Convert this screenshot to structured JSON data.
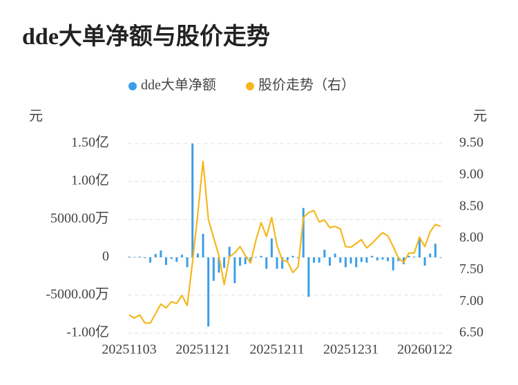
{
  "chart_data": {
    "type": "bar-line",
    "title": "dde大单净额与股价走势",
    "y_unit_label": "元",
    "y2_unit_label": "元",
    "categories": [
      "20251103",
      null,
      null,
      null,
      null,
      null,
      null,
      null,
      null,
      null,
      null,
      null,
      null,
      null,
      "20251121",
      null,
      null,
      null,
      null,
      null,
      null,
      null,
      null,
      null,
      null,
      null,
      null,
      null,
      "20251211",
      null,
      null,
      null,
      null,
      null,
      null,
      null,
      null,
      null,
      null,
      null,
      null,
      null,
      "20251231",
      null,
      null,
      null,
      null,
      null,
      null,
      null,
      null,
      null,
      null,
      null,
      null,
      null,
      "20260122",
      null,
      null,
      null
    ],
    "series": [
      {
        "name": "dde大单净额",
        "type": "bar",
        "color": "#3a9ee8",
        "axis": "y",
        "values": [
          1000000,
          500000,
          1000000,
          -1000000,
          -7000000,
          4500000,
          9000000,
          -10000000,
          -2000000,
          -6000000,
          3500000,
          -13000000,
          150000000,
          5000000,
          31000000,
          -91000000,
          -31000000,
          -20000000,
          -14000000,
          14000000,
          -34000000,
          -11000000,
          -9000000,
          -5000000,
          500000,
          2000000,
          -15000000,
          25000000,
          -15000000,
          -15000000,
          -4000000,
          2000000,
          -1000000,
          65000000,
          -52000000,
          -7000000,
          -7000000,
          10000000,
          -11000000,
          5000000,
          -7000000,
          -13000000,
          -8000000,
          -13000000,
          -6000000,
          -7000000,
          2000000,
          -4000000,
          -3000000,
          -5000000,
          -17000000,
          -5000000,
          -9000000,
          2000000,
          1000000,
          27000000,
          -11000000,
          5000000,
          18000000,
          0
        ]
      },
      {
        "name": "股价走势（右）",
        "type": "line",
        "color": "#f5b71c",
        "axis": "y2",
        "values": [
          6.79,
          6.74,
          6.79,
          6.66,
          6.66,
          6.81,
          6.96,
          6.9,
          7.0,
          6.97,
          7.1,
          6.94,
          7.62,
          8.39,
          9.22,
          8.3,
          8.01,
          7.73,
          7.27,
          7.71,
          7.77,
          7.87,
          7.73,
          7.61,
          7.97,
          8.25,
          8.03,
          8.33,
          7.89,
          7.66,
          7.63,
          7.46,
          7.55,
          8.33,
          8.41,
          8.44,
          8.26,
          8.29,
          8.17,
          8.19,
          8.15,
          7.87,
          7.86,
          7.92,
          7.98,
          7.85,
          7.92,
          8.01,
          8.09,
          8.04,
          7.87,
          7.69,
          7.62,
          7.77,
          7.77,
          8.02,
          7.87,
          8.1,
          8.22,
          8.19
        ]
      }
    ],
    "ylim": [
      -100000000,
      150000000
    ],
    "yticks": [
      {
        "value": 150000000,
        "label": "1.50亿"
      },
      {
        "value": 100000000,
        "label": "1.00亿"
      },
      {
        "value": 50000000,
        "label": "5000.00万"
      },
      0,
      {
        "value": -50000000,
        "label": "-5000.00万"
      },
      {
        "value": -100000000,
        "label": "-1.00亿"
      }
    ],
    "y2lim": [
      6.5,
      9.5
    ],
    "y2ticks": [
      {
        "value": 9.5,
        "label": "9.50"
      },
      {
        "value": 9,
        "label": "9.00"
      },
      {
        "value": 8.5,
        "label": "8.50"
      },
      {
        "value": 8,
        "label": "8.00"
      },
      {
        "value": 7.5,
        "label": "7.50"
      },
      {
        "value": 7,
        "label": "7.00"
      },
      {
        "value": 6.5,
        "label": "6.50"
      }
    ],
    "grid": true
  }
}
